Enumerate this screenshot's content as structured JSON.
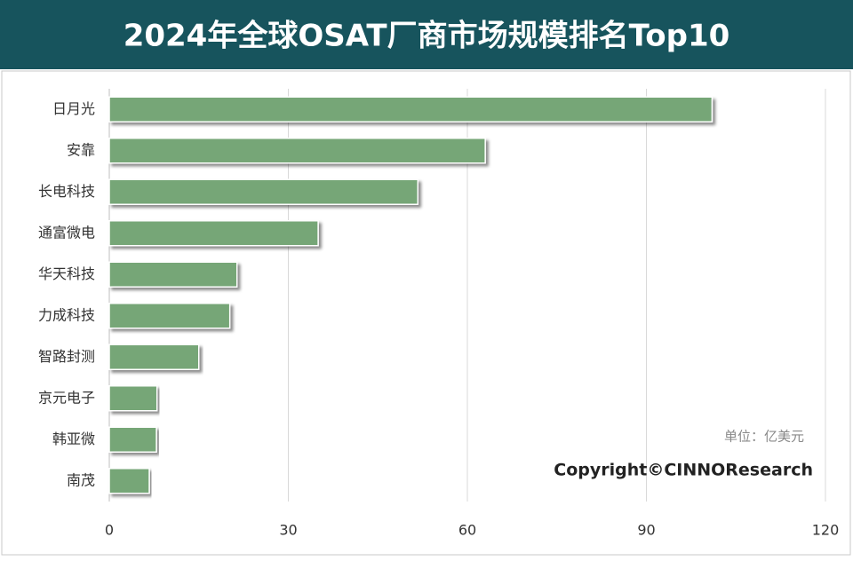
{
  "chart_data": {
    "type": "bar",
    "orientation": "horizontal",
    "title": "2024年全球OSAT厂商市场规模排名Top10",
    "categories": [
      "日月光",
      "安靠",
      "长电科技",
      "通富微电",
      "华天科技",
      "力成科技",
      "智路封测",
      "京元电子",
      "韩亚微",
      "南茂"
    ],
    "values": [
      101,
      63,
      51.7,
      35,
      21.4,
      20.2,
      15,
      8,
      7.9,
      6.7
    ],
    "color": "#76a677",
    "xlim": [
      0,
      120
    ],
    "xticks": [
      0,
      30,
      60,
      90,
      120
    ],
    "grid": true,
    "annotations": [
      "单位：亿美元",
      "Copyright©CINNOResearch"
    ]
  }
}
